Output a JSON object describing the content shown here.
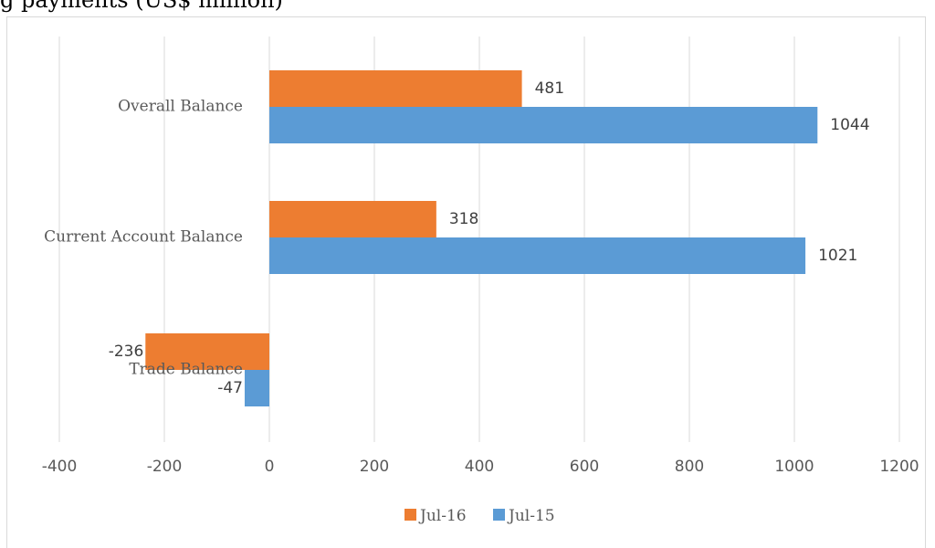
{
  "caption_fragment": "g                              payments (US$ million)",
  "chart_data": {
    "type": "bar",
    "orientation": "horizontal",
    "categories": [
      "Overall Balance",
      "Current Account Balance",
      "Trade Balance"
    ],
    "series": [
      {
        "name": "Jul-16",
        "color": "#ED7D31",
        "values": [
          481,
          318,
          -236
        ]
      },
      {
        "name": "Jul-15",
        "color": "#5B9BD5",
        "values": [
          1044,
          1021,
          -47
        ]
      }
    ],
    "xlim": [
      -400,
      1200
    ],
    "xticks": [
      -400,
      -200,
      0,
      200,
      400,
      600,
      800,
      1000,
      1200
    ],
    "grid": "vertical",
    "legend_position": "bottom"
  }
}
